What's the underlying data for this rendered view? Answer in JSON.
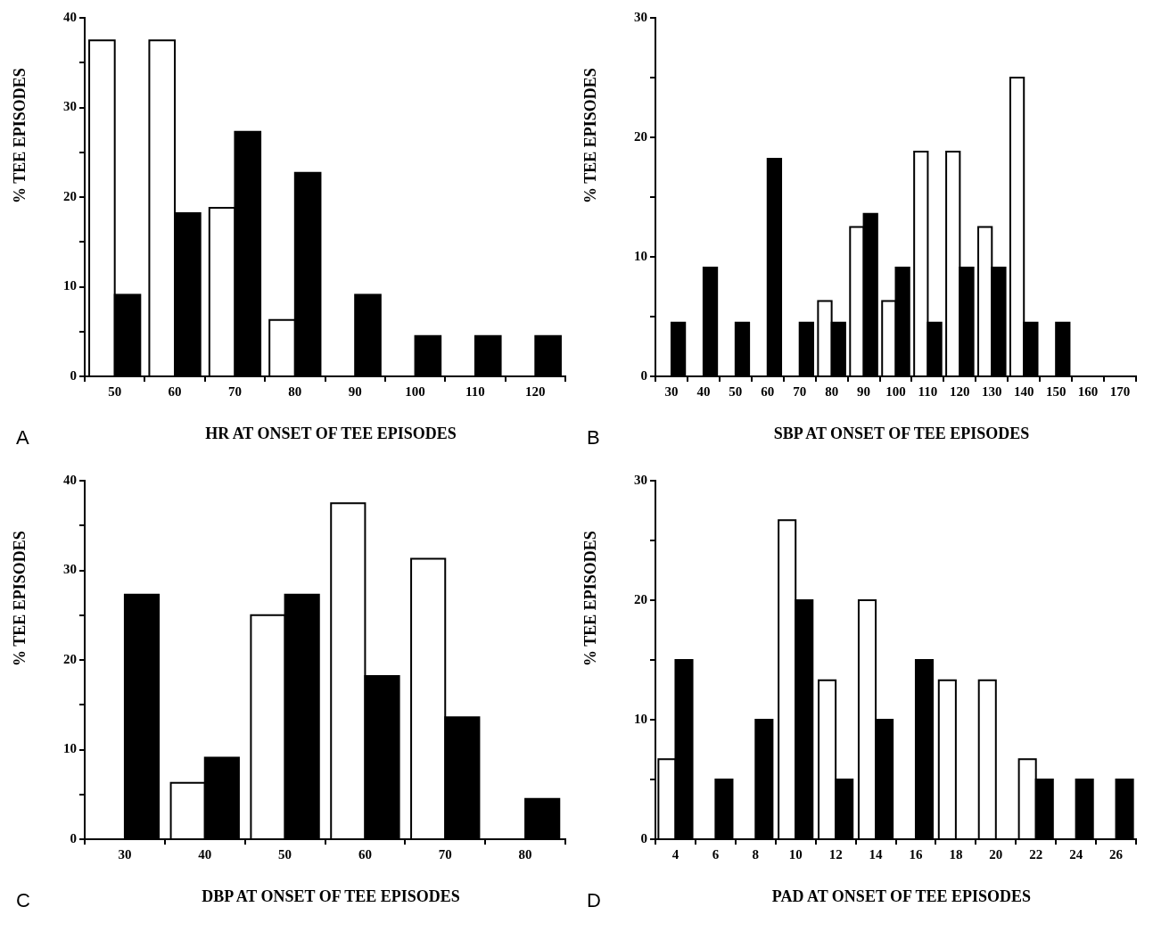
{
  "chart_data": [
    {
      "type": "bar",
      "xlabel": "HR AT ONSET OF TEE EPISODES",
      "ylabel": "% TEE EPISODES",
      "annotations": [
        "A"
      ],
      "categories": [
        "50",
        "60",
        "70",
        "80",
        "90",
        "100",
        "110",
        "120"
      ],
      "ylim": [
        0,
        40
      ],
      "yticks": [
        0,
        {
          "value": 5,
          "label": null
        },
        10,
        {
          "value": 15,
          "label": null
        },
        20,
        {
          "value": 25,
          "label": null
        },
        30,
        {
          "value": 35,
          "label": null
        },
        40
      ],
      "series": [
        {
          "color": "#ffffff",
          "values": [
            37.5,
            37.5,
            18.8,
            6.3,
            0,
            0,
            0,
            0
          ]
        },
        {
          "color": "#000000",
          "values": [
            9.1,
            18.2,
            27.3,
            22.7,
            9.1,
            4.5,
            4.5,
            4.5
          ]
        }
      ]
    },
    {
      "type": "bar",
      "xlabel": "SBP AT ONSET OF TEE EPISODES",
      "ylabel": "% TEE EPISODES",
      "annotations": [
        "B"
      ],
      "categories": [
        "30",
        "40",
        "50",
        "60",
        "70",
        "80",
        "90",
        "100",
        "110",
        "120",
        "130",
        "140",
        "150",
        "160",
        "170"
      ],
      "ylim": [
        0,
        30
      ],
      "yticks": [
        0,
        {
          "value": 5,
          "label": null
        },
        10,
        {
          "value": 15,
          "label": null
        },
        20,
        {
          "value": 25,
          "label": null
        },
        30
      ],
      "series": [
        {
          "color": "#ffffff",
          "values": [
            0,
            0,
            0,
            0,
            0,
            6.3,
            12.5,
            6.3,
            18.8,
            18.8,
            12.5,
            25,
            0,
            0,
            0
          ]
        },
        {
          "color": "#000000",
          "values": [
            4.5,
            9.1,
            4.5,
            18.2,
            4.5,
            4.5,
            13.6,
            9.1,
            4.5,
            9.1,
            9.1,
            4.5,
            4.5,
            0,
            0
          ]
        }
      ]
    },
    {
      "type": "bar",
      "xlabel": "DBP AT ONSET OF TEE EPISODES",
      "ylabel": "% TEE EPISODES",
      "annotations": [
        "C"
      ],
      "categories": [
        "30",
        "40",
        "50",
        "60",
        "70",
        "80"
      ],
      "ylim": [
        0,
        40
      ],
      "yticks": [
        0,
        {
          "value": 5,
          "label": null
        },
        10,
        {
          "value": 15,
          "label": null
        },
        20,
        {
          "value": 25,
          "label": null
        },
        30,
        {
          "value": 35,
          "label": null
        },
        40
      ],
      "series": [
        {
          "color": "#ffffff",
          "values": [
            0,
            6.3,
            25,
            37.5,
            31.3,
            0
          ]
        },
        {
          "color": "#000000",
          "values": [
            27.3,
            9.1,
            27.3,
            18.2,
            13.6,
            4.5
          ]
        }
      ]
    },
    {
      "type": "bar",
      "xlabel": "PAD AT ONSET OF TEE EPISODES",
      "ylabel": "% TEE EPISODES",
      "annotations": [
        "D"
      ],
      "categories": [
        "4",
        "6",
        "8",
        "10",
        "12",
        "14",
        "16",
        "18",
        "20",
        "22",
        "24",
        "26"
      ],
      "ylim": [
        0,
        30
      ],
      "yticks": [
        0,
        {
          "value": 5,
          "label": null
        },
        10,
        {
          "value": 15,
          "label": null
        },
        20,
        {
          "value": 25,
          "label": null
        },
        30
      ],
      "series": [
        {
          "color": "#ffffff",
          "values": [
            6.7,
            0,
            0,
            26.7,
            13.3,
            20,
            0,
            13.3,
            13.3,
            6.7,
            0,
            0
          ]
        },
        {
          "color": "#000000",
          "values": [
            15,
            5,
            10,
            20,
            5,
            10,
            15,
            0,
            0,
            5,
            5,
            5
          ]
        }
      ]
    }
  ]
}
